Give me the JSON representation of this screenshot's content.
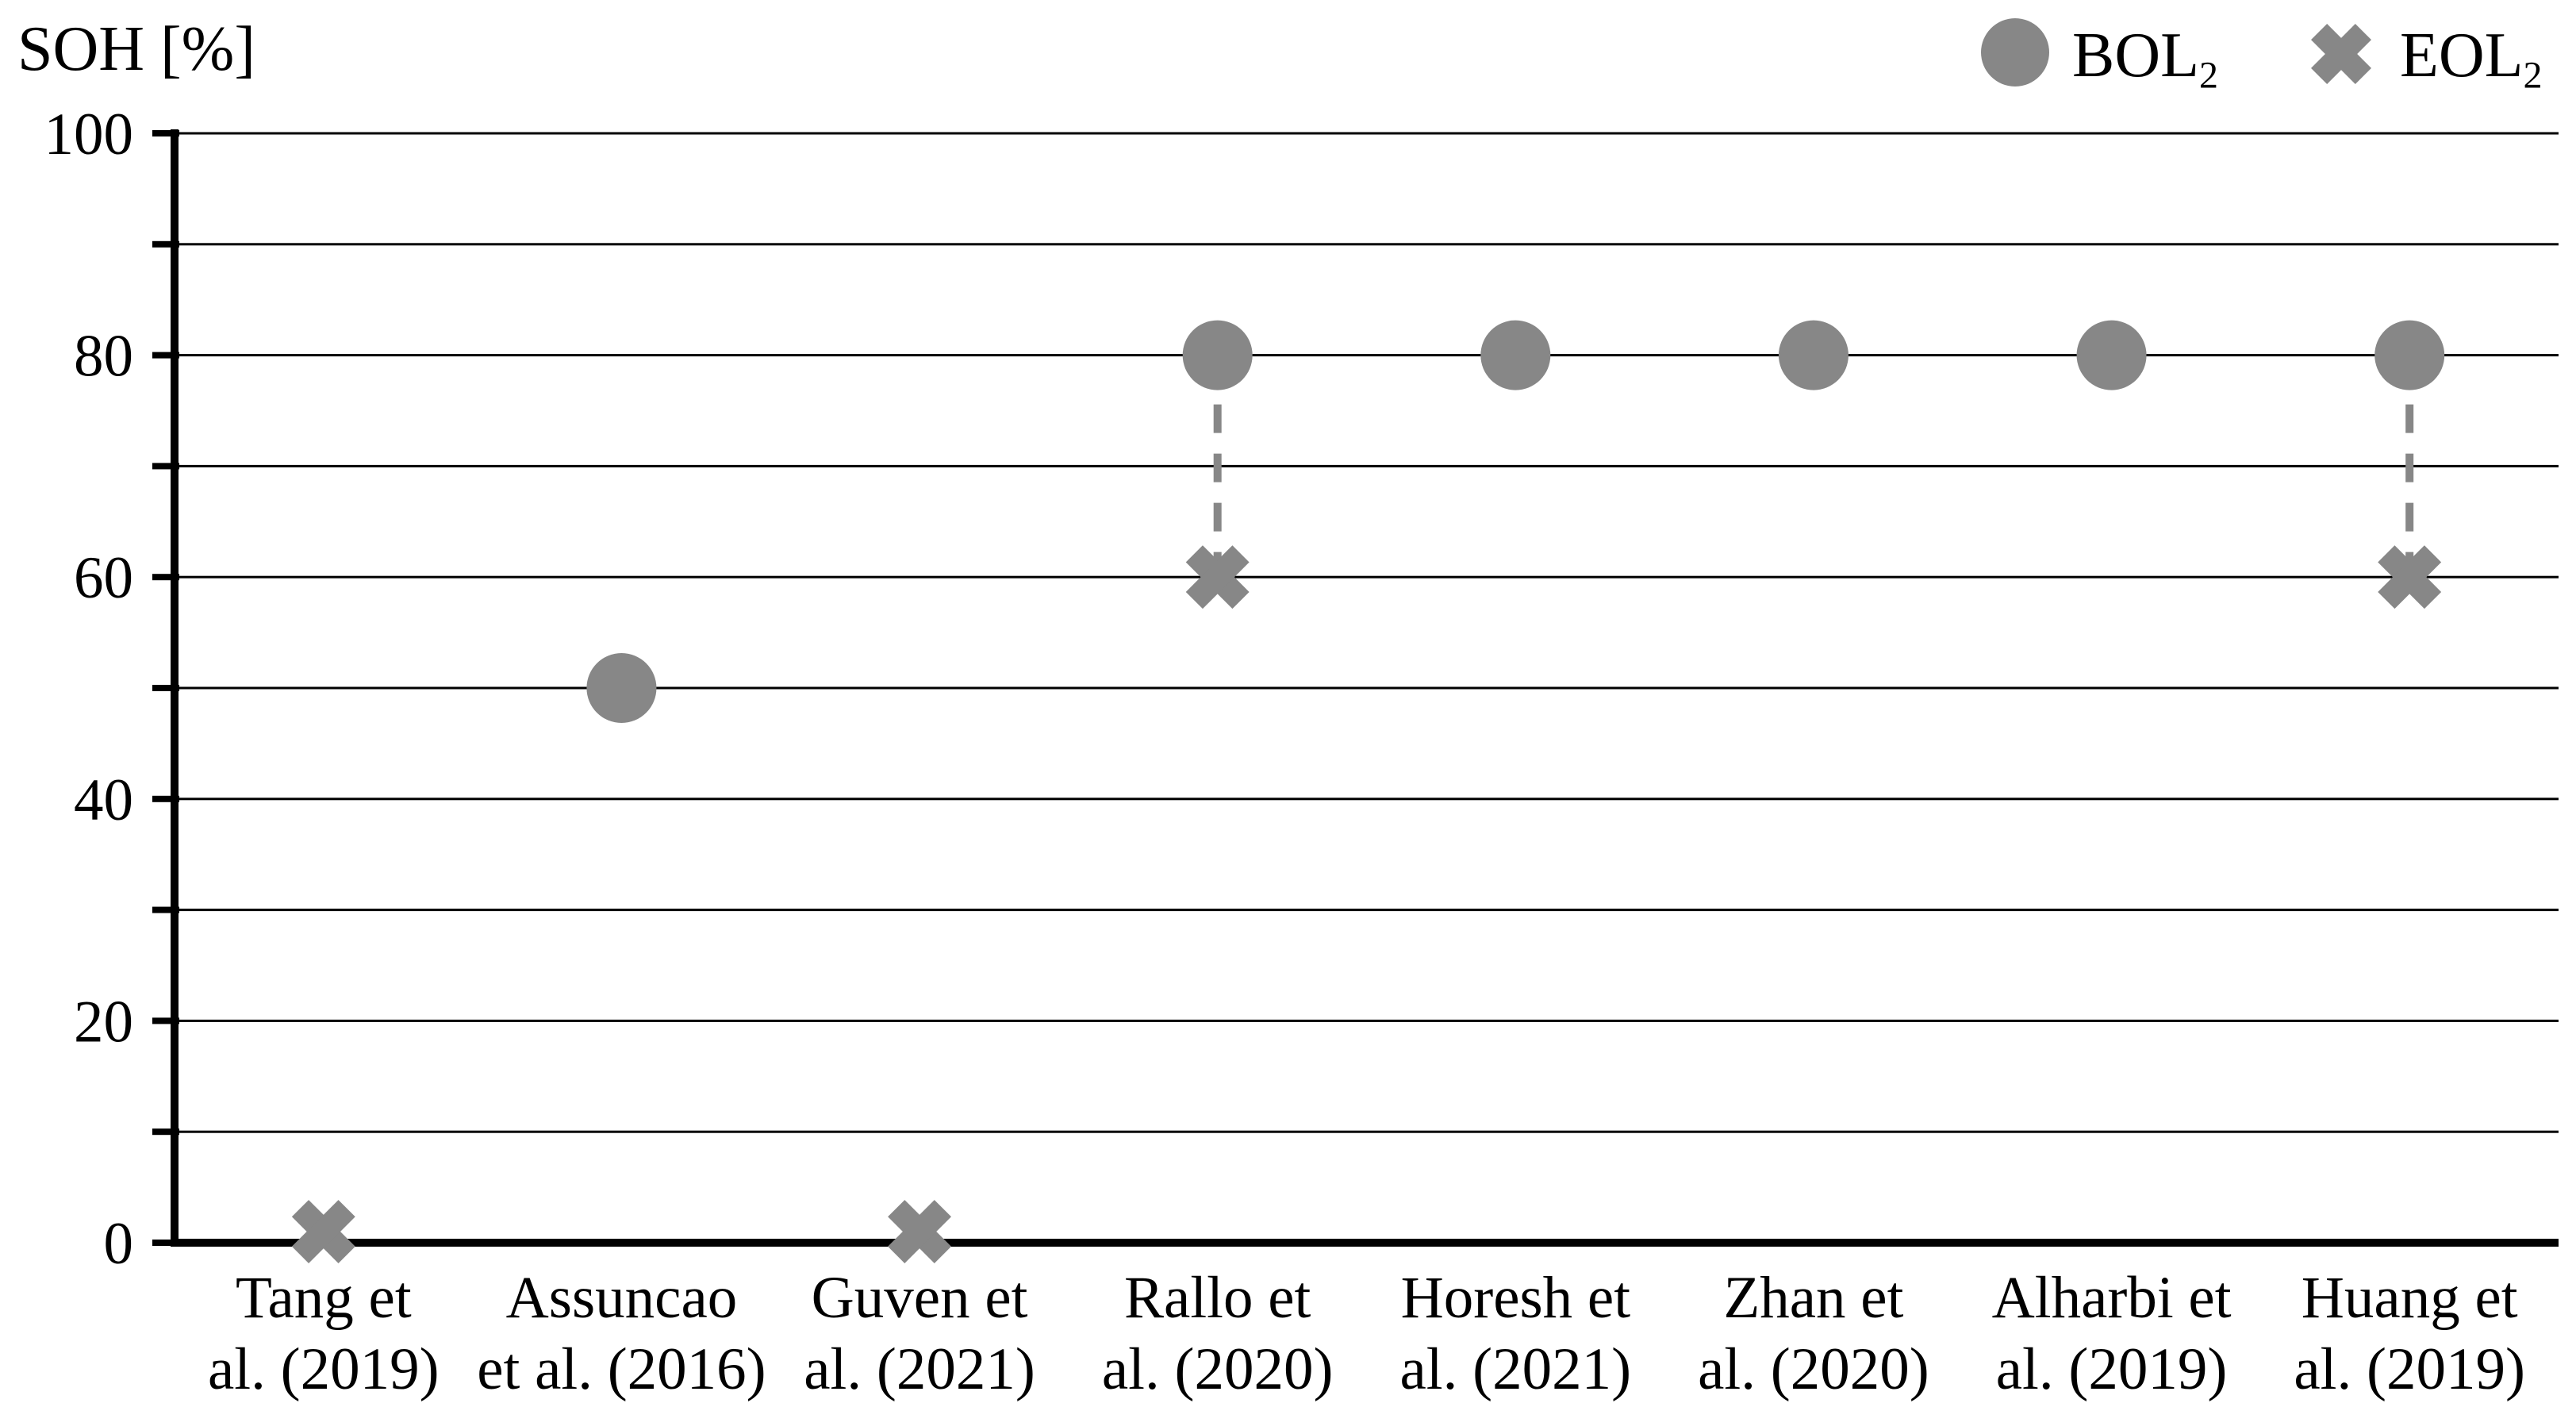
{
  "title": "SOH [%]",
  "legend": {
    "items": [
      {
        "label": "BOL",
        "subscript": "2",
        "marker": "circle"
      },
      {
        "label": "EOL",
        "subscript": "2",
        "marker": "x"
      }
    ]
  },
  "colors": {
    "marker": "#878787",
    "connector": "#878787",
    "axis": "#000000",
    "gridline": "#000000",
    "text": "#000000",
    "background": "#ffffff"
  },
  "chart_data": {
    "type": "scatter",
    "title": "SOH [%]",
    "y_axis_label": "SOH [%]",
    "x_categories": [
      [
        "Tang et",
        "al. (2019)"
      ],
      [
        "Assuncao",
        "et al. (2016)"
      ],
      [
        "Guven et",
        "al. (2021)"
      ],
      [
        "Rallo et",
        "al. (2020)"
      ],
      [
        "Horesh et",
        "al. (2021)"
      ],
      [
        "Zhan et",
        "al. (2020)"
      ],
      [
        "Alharbi et",
        "al. (2019)"
      ],
      [
        "Huang et",
        "al. (2019)"
      ]
    ],
    "series": [
      {
        "name": "BOL2",
        "marker": "circle",
        "values": [
          null,
          50,
          null,
          80,
          80,
          80,
          80,
          80
        ]
      },
      {
        "name": "EOL2",
        "marker": "x",
        "values": [
          1,
          null,
          1,
          60,
          null,
          null,
          null,
          60
        ]
      }
    ],
    "connectors": [
      {
        "category_index": 3,
        "from": 80,
        "to": 60
      },
      {
        "category_index": 7,
        "from": 80,
        "to": 60
      }
    ],
    "y_axis": {
      "min": 0,
      "max": 100,
      "grid_step": 10,
      "label_step": 20,
      "tick_labels": [
        "0",
        "20",
        "40",
        "60",
        "80",
        "100"
      ]
    },
    "grid": true,
    "legend_position": "top-right"
  }
}
